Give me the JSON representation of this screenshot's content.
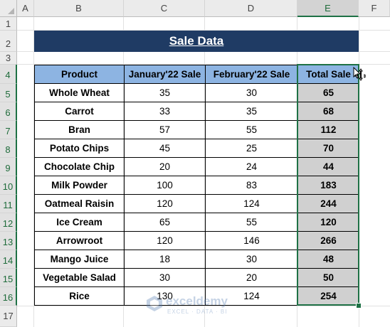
{
  "columns": [
    "A",
    "B",
    "C",
    "D",
    "E",
    "F"
  ],
  "rows": [
    "1",
    "2",
    "3",
    "4",
    "5",
    "6",
    "7",
    "8",
    "9",
    "10",
    "11",
    "12",
    "13",
    "14",
    "15",
    "16",
    "17"
  ],
  "title": "Sale Data",
  "headers": {
    "product": "Product",
    "jan": "January'22 Sale",
    "feb": "February'22 Sale",
    "total": "Total Sale"
  },
  "items": [
    {
      "product": "Whole Wheat",
      "jan": "35",
      "feb": "30",
      "total": "65"
    },
    {
      "product": "Carrot",
      "jan": "33",
      "feb": "35",
      "total": "68"
    },
    {
      "product": "Bran",
      "jan": "57",
      "feb": "55",
      "total": "112"
    },
    {
      "product": "Potato Chips",
      "jan": "45",
      "feb": "25",
      "total": "70"
    },
    {
      "product": "Chocolate Chip",
      "jan": "20",
      "feb": "24",
      "total": "44"
    },
    {
      "product": "Milk Powder",
      "jan": "100",
      "feb": "83",
      "total": "183"
    },
    {
      "product": "Oatmeal Raisin",
      "jan": "120",
      "feb": "124",
      "total": "244"
    },
    {
      "product": "Ice Cream",
      "jan": "65",
      "feb": "55",
      "total": "120"
    },
    {
      "product": "Arrowroot",
      "jan": "120",
      "feb": "146",
      "total": "266"
    },
    {
      "product": "Mango Juice",
      "jan": "18",
      "feb": "30",
      "total": "48"
    },
    {
      "product": "Vegetable Salad",
      "jan": "30",
      "feb": "20",
      "total": "50"
    },
    {
      "product": "Rice",
      "jan": "130",
      "feb": "124",
      "total": "254"
    }
  ],
  "watermark": {
    "brand": "exceldemy",
    "tagline": "EXCEL · DATA · BI"
  },
  "colors": {
    "banner": "#1f3b64",
    "header_fill": "#8db4e2",
    "total_fill": "#d0d0d0",
    "selection": "#1e7145"
  },
  "icons": [
    "move-cursor-icon",
    "exceldemy-logo-icon",
    "select-all-icon"
  ]
}
